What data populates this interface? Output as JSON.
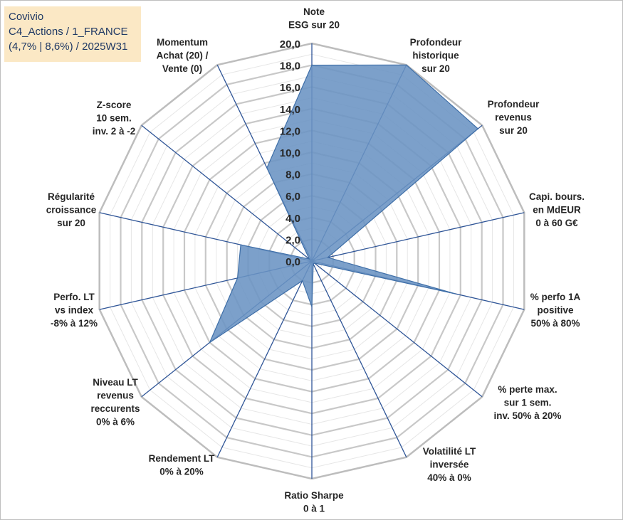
{
  "info": {
    "line1": "Covivio",
    "line2": "C4_Actions / 1_FRANCE",
    "line3": "(4,7% | 8,6%) / 2025W31"
  },
  "chart_data": {
    "type": "radar",
    "rmin": 0,
    "rmax": 20,
    "ticks": [
      "0,0",
      "2,0",
      "4,0",
      "6,0",
      "8,0",
      "10,0",
      "12,0",
      "14,0",
      "16,0",
      "18,0",
      "20,0"
    ],
    "axes": [
      "Note\nESG sur 20",
      "Profondeur\nhistorique\nsur 20",
      "Profondeur\nrevenus\nsur 20",
      "Capi. bours.\nen MdEUR\n0 à 60 G€",
      "% perfo 1A\npositive\n50% à 80%",
      "% perte max.\nsur 1 sem.\ninv. 50% à 20%",
      "Volatilité LT\ninversée\n40% à 0%",
      "Ratio Sharpe\n0 à 1",
      "Rendement LT\n0% à 20%",
      "Niveau LT\nrevenus\nreccurents\n0% à 6%",
      "Perfo. LT\nvs index\n-8% à 12%",
      "Régularité\ncroissance\nsur 20",
      "Z-score\n10 sem.\ninv. 2 à -2",
      "Momentum\nAchat (20) /\nVente (0)"
    ],
    "series": [
      {
        "values": [
          18.0,
          20.0,
          19.5,
          1.5,
          13.5,
          0.3,
          0.3,
          4.2,
          2.0,
          12.0,
          7.0,
          6.7,
          0.3,
          9.5
        ],
        "color": "#4f81bd"
      }
    ],
    "colors": {
      "fill": "#6a93c3",
      "stroke": "#3f6fa8",
      "grid": "#d0d0d0",
      "axis": "#2f5597"
    }
  }
}
